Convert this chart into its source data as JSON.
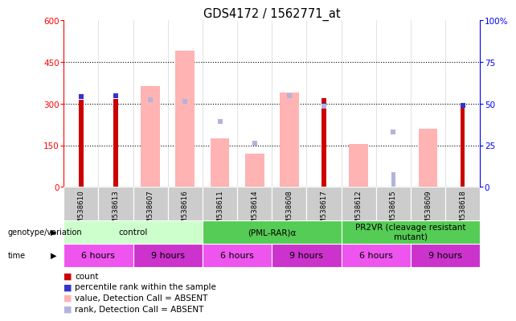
{
  "title": "GDS4172 / 1562771_at",
  "samples": [
    "GSM538610",
    "GSM538613",
    "GSM538607",
    "GSM538616",
    "GSM538611",
    "GSM538614",
    "GSM538608",
    "GSM538617",
    "GSM538612",
    "GSM538615",
    "GSM538609",
    "GSM538618"
  ],
  "count_values": [
    315,
    318,
    null,
    null,
    null,
    null,
    null,
    320,
    null,
    null,
    null,
    295
  ],
  "value_absent": [
    null,
    null,
    365,
    490,
    175,
    120,
    340,
    null,
    155,
    null,
    210,
    null
  ],
  "rank_absent_bar": [
    null,
    null,
    null,
    null,
    null,
    null,
    null,
    null,
    null,
    55,
    null,
    null
  ],
  "percentile_present_sq": [
    325,
    328,
    null,
    null,
    null,
    null,
    null,
    295,
    null,
    null,
    null,
    295
  ],
  "percentile_absent_sq": [
    null,
    null,
    315,
    308,
    235,
    158,
    328,
    290,
    null,
    198,
    null,
    null
  ],
  "ylim_left": [
    0,
    600
  ],
  "ylim_right": [
    0,
    100
  ],
  "yticks_left": [
    0,
    150,
    300,
    450,
    600
  ],
  "yticks_right": [
    0,
    25,
    50,
    75,
    100
  ],
  "yticklabels_right": [
    "0",
    "25",
    "50",
    "75",
    "100%"
  ],
  "count_color": "#cc0000",
  "percentile_color": "#3333cc",
  "value_absent_color": "#ffb3b3",
  "rank_absent_color": "#b3b3dd",
  "background_color": "#ffffff",
  "sample_bg_color": "#cccccc",
  "geno_groups": [
    {
      "label": "control",
      "start": 0,
      "end": 4,
      "color": "#ccffcc"
    },
    {
      "label": "(PML-RAR)α",
      "start": 4,
      "end": 8,
      "color": "#55cc55"
    },
    {
      "label": "PR2VR (cleavage resistant\nmutant)",
      "start": 8,
      "end": 12,
      "color": "#55cc55"
    }
  ],
  "time_groups": [
    {
      "label": "6 hours",
      "start": 0,
      "end": 2,
      "color": "#ee55ee"
    },
    {
      "label": "9 hours",
      "start": 2,
      "end": 4,
      "color": "#cc33cc"
    },
    {
      "label": "6 hours",
      "start": 4,
      "end": 6,
      "color": "#ee55ee"
    },
    {
      "label": "9 hours",
      "start": 6,
      "end": 8,
      "color": "#cc33cc"
    },
    {
      "label": "6 hours",
      "start": 8,
      "end": 10,
      "color": "#ee55ee"
    },
    {
      "label": "9 hours",
      "start": 10,
      "end": 12,
      "color": "#cc33cc"
    }
  ],
  "legend_items": [
    {
      "label": "count",
      "color": "#cc0000"
    },
    {
      "label": "percentile rank within the sample",
      "color": "#3333cc"
    },
    {
      "label": "value, Detection Call = ABSENT",
      "color": "#ffb3b3"
    },
    {
      "label": "rank, Detection Call = ABSENT",
      "color": "#b3b3dd"
    }
  ]
}
